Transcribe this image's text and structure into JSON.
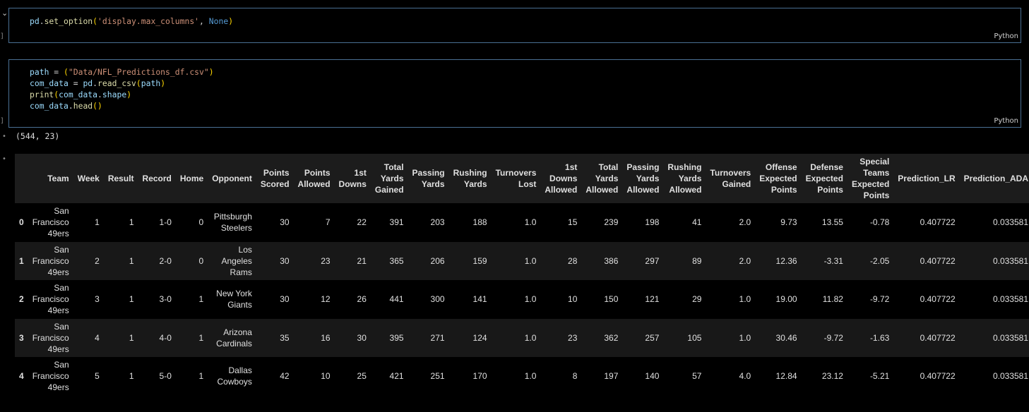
{
  "cells": [
    {
      "lang": "Python",
      "code": [
        [
          [
            "k-var",
            "pd"
          ],
          [
            "k-op",
            "."
          ],
          [
            "k-fn",
            "set_option"
          ],
          [
            "k-par",
            "("
          ],
          [
            "k-str",
            "'display.max_columns'"
          ],
          [
            "k-op",
            ", "
          ],
          [
            "k-kw",
            "None"
          ],
          [
            "k-par",
            ")"
          ]
        ]
      ]
    },
    {
      "lang": "Python",
      "code": [
        [
          [
            "k-var",
            "path"
          ],
          [
            "k-op",
            " = "
          ],
          [
            "k-par",
            "("
          ],
          [
            "k-str",
            "\"Data/NFL_Predictions_df.csv\""
          ],
          [
            "k-par",
            ")"
          ]
        ],
        [
          [
            "k-var",
            "com_data"
          ],
          [
            "k-op",
            " = "
          ],
          [
            "k-var",
            "pd"
          ],
          [
            "k-op",
            "."
          ],
          [
            "k-fn",
            "read_csv"
          ],
          [
            "k-par",
            "("
          ],
          [
            "k-var",
            "path"
          ],
          [
            "k-par",
            ")"
          ]
        ],
        [
          [
            "k-fn",
            "print"
          ],
          [
            "k-par",
            "("
          ],
          [
            "k-var",
            "com_data"
          ],
          [
            "k-op",
            "."
          ],
          [
            "k-var",
            "shape"
          ],
          [
            "k-par",
            ")"
          ]
        ],
        [
          [
            "k-var",
            "com_data"
          ],
          [
            "k-op",
            "."
          ],
          [
            "k-fn",
            "head"
          ],
          [
            "k-par",
            "()"
          ]
        ]
      ]
    }
  ],
  "output": {
    "shape": "(544, 23)",
    "columns": [
      "",
      "Team",
      "Week",
      "Result",
      "Record",
      "Home",
      "Opponent",
      "Points Scored",
      "Points Allowed",
      "1st Downs",
      "Total Yards Gained",
      "Passing Yards",
      "Rushing Yards",
      "Turnovers Lost",
      "1st Downs Allowed",
      "Total Yards Allowed",
      "Passing Yards Allowed",
      "Rushing Yards Allowed",
      "Turnovers Gained",
      "Offense Expected Points",
      "Defense Expected Points",
      "Special Teams Expected Points",
      "Prediction_LR",
      "Prediction_ADA"
    ],
    "rows": [
      [
        "0",
        "San Francisco 49ers",
        "1",
        "1",
        "1-0",
        "0",
        "Pittsburgh Steelers",
        "30",
        "7",
        "22",
        "391",
        "203",
        "188",
        "1.0",
        "15",
        "239",
        "198",
        "41",
        "2.0",
        "9.73",
        "13.55",
        "-0.78",
        "0.407722",
        "0.033581"
      ],
      [
        "1",
        "San Francisco 49ers",
        "2",
        "1",
        "2-0",
        "0",
        "Los Angeles Rams",
        "30",
        "23",
        "21",
        "365",
        "206",
        "159",
        "1.0",
        "28",
        "386",
        "297",
        "89",
        "2.0",
        "12.36",
        "-3.31",
        "-2.05",
        "0.407722",
        "0.033581"
      ],
      [
        "2",
        "San Francisco 49ers",
        "3",
        "1",
        "3-0",
        "1",
        "New York Giants",
        "30",
        "12",
        "26",
        "441",
        "300",
        "141",
        "1.0",
        "10",
        "150",
        "121",
        "29",
        "1.0",
        "19.00",
        "11.82",
        "-9.72",
        "0.407722",
        "0.033581"
      ],
      [
        "3",
        "San Francisco 49ers",
        "4",
        "1",
        "4-0",
        "1",
        "Arizona Cardinals",
        "35",
        "16",
        "30",
        "395",
        "271",
        "124",
        "1.0",
        "23",
        "362",
        "257",
        "105",
        "1.0",
        "30.46",
        "-9.72",
        "-1.63",
        "0.407722",
        "0.033581"
      ],
      [
        "4",
        "San Francisco 49ers",
        "5",
        "1",
        "5-0",
        "1",
        "Dallas Cowboys",
        "42",
        "10",
        "25",
        "421",
        "251",
        "170",
        "1.0",
        "8",
        "197",
        "140",
        "57",
        "4.0",
        "12.84",
        "23.12",
        "-5.21",
        "0.407722",
        "0.033581"
      ]
    ]
  }
}
